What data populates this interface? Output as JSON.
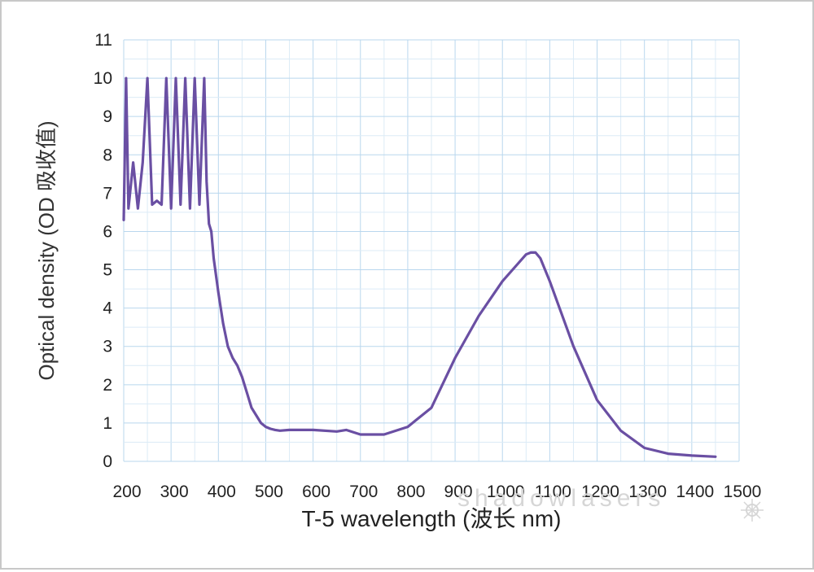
{
  "chart_data": {
    "type": "line",
    "title": "",
    "xlabel": "T-5 wavelength (波长 nm)",
    "ylabel": "Optical density (OD 吸收值)",
    "xlim": [
      200,
      1500
    ],
    "ylim": [
      0,
      11
    ],
    "xticks": [
      "200",
      "300",
      "400",
      "500",
      "600",
      "700",
      "800",
      "900",
      "1000",
      "1100",
      "1200",
      "1300",
      "1400",
      "1500"
    ],
    "yticks": [
      "0",
      "1",
      "2",
      "3",
      "4",
      "5",
      "6",
      "7",
      "8",
      "9",
      "10",
      "11"
    ],
    "grid": true,
    "series": [
      {
        "name": "",
        "color": "#6a4fa3",
        "x": [
          200,
          205,
          210,
          220,
          230,
          240,
          250,
          260,
          270,
          280,
          290,
          300,
          310,
          320,
          330,
          340,
          350,
          360,
          370,
          375,
          380,
          385,
          390,
          400,
          410,
          420,
          430,
          440,
          450,
          460,
          470,
          480,
          490,
          500,
          510,
          520,
          530,
          550,
          600,
          650,
          670,
          700,
          750,
          800,
          850,
          900,
          950,
          1000,
          1050,
          1060,
          1070,
          1080,
          1100,
          1150,
          1200,
          1250,
          1300,
          1350,
          1400,
          1450
        ],
        "y": [
          6.3,
          10.0,
          6.6,
          7.8,
          6.6,
          7.8,
          10.0,
          6.7,
          6.8,
          6.7,
          10.0,
          6.6,
          10.0,
          6.7,
          10.0,
          6.6,
          10.0,
          6.7,
          10.0,
          7.3,
          6.2,
          6.0,
          5.3,
          4.4,
          3.6,
          3.0,
          2.7,
          2.5,
          2.2,
          1.8,
          1.4,
          1.2,
          1.0,
          0.9,
          0.85,
          0.82,
          0.8,
          0.82,
          0.82,
          0.78,
          0.82,
          0.7,
          0.7,
          0.9,
          1.4,
          2.7,
          3.8,
          4.7,
          5.4,
          5.45,
          5.45,
          5.3,
          4.7,
          3.0,
          1.6,
          0.8,
          0.35,
          0.2,
          0.15,
          0.12
        ]
      }
    ]
  },
  "watermark": "shadowlasers"
}
